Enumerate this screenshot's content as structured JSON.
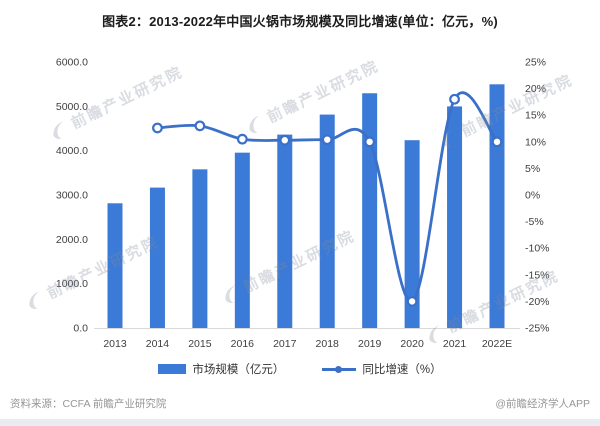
{
  "title": "图表2：2013-2022年中国火锅市场规模及同比增速(单位：亿元，%)",
  "chart_data": {
    "type": "combo-bar-line",
    "categories": [
      "2013",
      "2014",
      "2015",
      "2016",
      "2017",
      "2018",
      "2019",
      "2020",
      "2021",
      "2022E"
    ],
    "series": [
      {
        "name": "市场规模（亿元）",
        "type": "bar",
        "axis": "left",
        "values": [
          2813,
          3167,
          3579,
          3955,
          4362,
          4814,
          5295,
          4236,
          4998,
          5497
        ]
      },
      {
        "name": "同比增速（%）",
        "type": "line",
        "axis": "right",
        "values": [
          null,
          12.6,
          13.0,
          10.5,
          10.3,
          10.4,
          10.0,
          -20.0,
          18.0,
          10.0
        ]
      }
    ],
    "y_left": {
      "min": 0,
      "max": 6000,
      "tick_labels": [
        "0.0",
        "1000.0",
        "2000.0",
        "3000.0",
        "4000.0",
        "5000.0",
        "6000.0"
      ]
    },
    "y_right": {
      "min": -25,
      "max": 25,
      "tick_labels": [
        "-25%",
        "-20%",
        "-15%",
        "-10%",
        "-5%",
        "0%",
        "5%",
        "10%",
        "15%",
        "20%",
        "25%"
      ]
    },
    "grid": false,
    "legend_position": "bottom"
  },
  "footer": {
    "source": "资料来源：CCFA 前瞻产业研究院",
    "credit": "@前瞻经济学人APP"
  },
  "watermark": {
    "text": "前瞻产业研究院"
  },
  "colors": {
    "bar": "#3b7ad6",
    "line": "#3a70c8",
    "marker_fill": "#ffffff",
    "axis_text": "#404040",
    "axis_line": "#d9d9d9"
  }
}
